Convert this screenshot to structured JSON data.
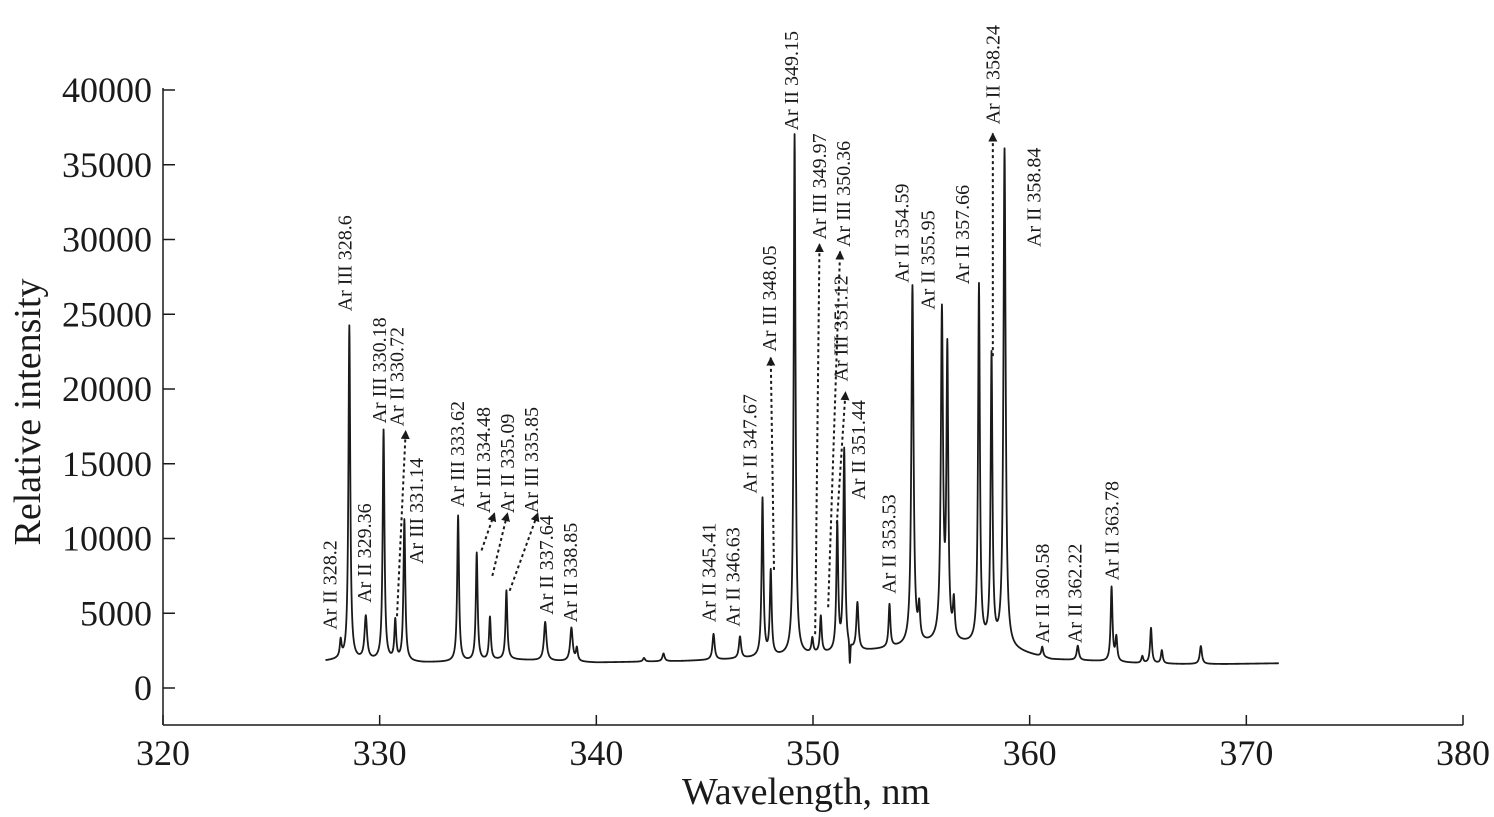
{
  "chart_data": {
    "type": "line",
    "title": "",
    "xlabel": "Wavelength, nm",
    "ylabel": "Relative intensity",
    "xlim": [
      320,
      380
    ],
    "ylim": [
      -2500,
      40000
    ],
    "xticks": [
      320,
      330,
      340,
      350,
      360,
      370,
      380
    ],
    "yticks": [
      0,
      5000,
      10000,
      15000,
      20000,
      25000,
      30000,
      35000,
      40000
    ],
    "grid": false,
    "colors": {
      "line": "#1a1a1a",
      "axis": "#1a1a1a"
    },
    "baseline": [
      [
        327.5,
        1800
      ],
      [
        328.0,
        1850
      ],
      [
        330.0,
        1800
      ],
      [
        332.0,
        1700
      ],
      [
        334.0,
        1750
      ],
      [
        336.0,
        1900
      ],
      [
        338.0,
        1800
      ],
      [
        340.0,
        1700
      ],
      [
        342.0,
        1750
      ],
      [
        344.0,
        1800
      ],
      [
        346.0,
        1900
      ],
      [
        348.0,
        2050
      ],
      [
        350.0,
        2200
      ],
      [
        352.0,
        2400
      ],
      [
        354.0,
        2700
      ],
      [
        356.0,
        3000
      ],
      [
        358.0,
        2800
      ],
      [
        359.5,
        2400
      ],
      [
        361.0,
        1900
      ],
      [
        363.0,
        1800
      ],
      [
        365.0,
        1650
      ],
      [
        367.0,
        1600
      ],
      [
        369.0,
        1600
      ],
      [
        371.5,
        1650
      ]
    ],
    "peaks": [
      {
        "x": 328.2,
        "y": 3000,
        "w": 0.05
      },
      {
        "x": 328.6,
        "y": 24200,
        "w": 0.05
      },
      {
        "x": 329.36,
        "y": 4700,
        "w": 0.07
      },
      {
        "x": 330.18,
        "y": 17200,
        "w": 0.05
      },
      {
        "x": 330.72,
        "y": 4400,
        "w": 0.05
      },
      {
        "x": 331.14,
        "y": 11200,
        "w": 0.05
      },
      {
        "x": 333.62,
        "y": 11500,
        "w": 0.05
      },
      {
        "x": 334.48,
        "y": 9000,
        "w": 0.05
      },
      {
        "x": 335.09,
        "y": 4700,
        "w": 0.05
      },
      {
        "x": 335.85,
        "y": 6500,
        "w": 0.05
      },
      {
        "x": 337.64,
        "y": 4400,
        "w": 0.07
      },
      {
        "x": 338.85,
        "y": 4000,
        "w": 0.07
      },
      {
        "x": 339.1,
        "y": 2600,
        "w": 0.05
      },
      {
        "x": 342.2,
        "y": 2000,
        "w": 0.06
      },
      {
        "x": 343.1,
        "y": 2300,
        "w": 0.06
      },
      {
        "x": 345.41,
        "y": 3600,
        "w": 0.06
      },
      {
        "x": 346.63,
        "y": 3400,
        "w": 0.06
      },
      {
        "x": 347.67,
        "y": 12600,
        "w": 0.05
      },
      {
        "x": 348.05,
        "y": 7700,
        "w": 0.05
      },
      {
        "x": 349.15,
        "y": 37000,
        "w": 0.05
      },
      {
        "x": 349.97,
        "y": 3200,
        "w": 0.05
      },
      {
        "x": 350.36,
        "y": 4700,
        "w": 0.05
      },
      {
        "x": 351.12,
        "y": 10800,
        "w": 0.05
      },
      {
        "x": 351.44,
        "y": 15800,
        "w": 0.05
      },
      {
        "x": 352.05,
        "y": 5600,
        "w": 0.06
      },
      {
        "x": 353.53,
        "y": 5500,
        "w": 0.05
      },
      {
        "x": 354.59,
        "y": 26800,
        "w": 0.06
      },
      {
        "x": 354.9,
        "y": 5000,
        "w": 0.05
      },
      {
        "x": 355.95,
        "y": 24800,
        "w": 0.06
      },
      {
        "x": 356.2,
        "y": 22000,
        "w": 0.05
      },
      {
        "x": 356.5,
        "y": 5400,
        "w": 0.05
      },
      {
        "x": 357.66,
        "y": 26800,
        "w": 0.05
      },
      {
        "x": 358.24,
        "y": 22000,
        "w": 0.05
      },
      {
        "x": 358.84,
        "y": 35900,
        "w": 0.06
      },
      {
        "x": 360.58,
        "y": 2700,
        "w": 0.05
      },
      {
        "x": 362.22,
        "y": 2800,
        "w": 0.06
      },
      {
        "x": 363.78,
        "y": 6700,
        "w": 0.05
      },
      {
        "x": 364.0,
        "y": 3300,
        "w": 0.05
      },
      {
        "x": 365.2,
        "y": 2100,
        "w": 0.05
      },
      {
        "x": 365.6,
        "y": 4000,
        "w": 0.05
      },
      {
        "x": 366.1,
        "y": 2500,
        "w": 0.05
      },
      {
        "x": 367.9,
        "y": 2800,
        "w": 0.06
      }
    ],
    "dip": {
      "x": 351.7,
      "y": 1000
    },
    "annotations": [
      {
        "text": "Ar II 328.2",
        "x": 328.0,
        "y": 3900
      },
      {
        "text": "Ar III 328.6",
        "x": 328.7,
        "y": 25200
      },
      {
        "text": "Ar II 329.36",
        "x": 329.6,
        "y": 5700
      },
      {
        "text": "Ar III 330.18",
        "x": 330.3,
        "y": 17700
      },
      {
        "text": "Ar II 330.72",
        "x": 331.1,
        "y": 17500
      },
      {
        "text": "Ar III 331.14",
        "x": 332.0,
        "y": 8300
      },
      {
        "text": "Ar III 333.62",
        "x": 333.9,
        "y": 12100
      },
      {
        "text": "Ar III 334.48",
        "x": 335.1,
        "y": 11700
      },
      {
        "text": "Ar II 335.09",
        "x": 336.2,
        "y": 11700
      },
      {
        "text": "Ar III 335.85",
        "x": 337.3,
        "y": 11700
      },
      {
        "text": "Ar II 337.64",
        "x": 338.0,
        "y": 4900
      },
      {
        "text": "Ar II 338.85",
        "x": 339.1,
        "y": 4400
      },
      {
        "text": "Ar II 345.41",
        "x": 345.5,
        "y": 4400
      },
      {
        "text": "Ar II 346.63",
        "x": 346.6,
        "y": 4100
      },
      {
        "text": "Ar II 347.67",
        "x": 347.4,
        "y": 13000
      },
      {
        "text": "Ar III 348.05",
        "x": 348.3,
        "y": 22500
      },
      {
        "text": "Ar II 349.15",
        "x": 349.3,
        "y": 37300
      },
      {
        "text": "Ar III 349.97",
        "x": 350.6,
        "y": 30000
      },
      {
        "text": "Ar III 350.36",
        "x": 351.7,
        "y": 29500
      },
      {
        "text": "Ar III 351.12",
        "x": 351.6,
        "y": 20500
      },
      {
        "text": "Ar II 351.44",
        "x": 352.4,
        "y": 12600
      },
      {
        "text": "Ar II 353.53",
        "x": 353.8,
        "y": 6300
      },
      {
        "text": "Ar II 354.59",
        "x": 354.4,
        "y": 27100
      },
      {
        "text": "Ar II 355.95",
        "x": 355.6,
        "y": 25300
      },
      {
        "text": "Ar II 357.66",
        "x": 357.2,
        "y": 27000
      },
      {
        "text": "Ar II 358.24",
        "x": 358.6,
        "y": 37700
      },
      {
        "text": "Ar II 358.84",
        "x": 360.5,
        "y": 29500
      },
      {
        "text": "Ar II 360.58",
        "x": 360.9,
        "y": 3000
      },
      {
        "text": "Ar II 362.22",
        "x": 362.4,
        "y": 3000
      },
      {
        "text": "Ar II 363.78",
        "x": 364.1,
        "y": 7200
      }
    ],
    "arrows": [
      {
        "from": [
          330.8,
          4800
        ],
        "to": [
          331.2,
          17200
        ]
      },
      {
        "from": [
          334.7,
          9200
        ],
        "to": [
          335.3,
          11700
        ]
      },
      {
        "from": [
          335.2,
          7500
        ],
        "to": [
          335.9,
          11700
        ]
      },
      {
        "from": [
          336.0,
          6500
        ],
        "to": [
          337.3,
          11700
        ]
      },
      {
        "from": [
          348.2,
          7900
        ],
        "to": [
          348.05,
          22100
        ]
      },
      {
        "from": [
          350.1,
          3600
        ],
        "to": [
          350.3,
          29700
        ]
      },
      {
        "from": [
          350.7,
          5400
        ],
        "to": [
          351.25,
          29200
        ]
      },
      {
        "from": [
          351.1,
          11000
        ],
        "to": [
          351.5,
          19800
        ]
      },
      {
        "from": [
          358.3,
          22200
        ],
        "to": [
          358.3,
          37100
        ]
      }
    ]
  }
}
